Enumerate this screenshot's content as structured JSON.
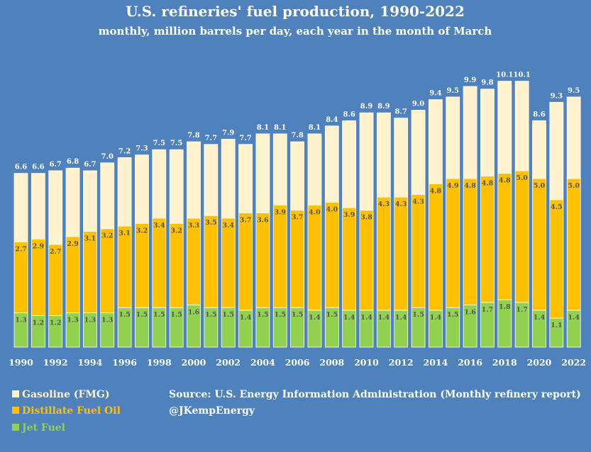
{
  "chart_data": {
    "type": "bar",
    "stacked": true,
    "title": "U.S. refineries' fuel production, 1990-2022",
    "subtitle": "monthly, million barrels per day, each year in the month of March",
    "x": [
      1990,
      1991,
      1992,
      1993,
      1994,
      1995,
      1996,
      1997,
      1998,
      1999,
      2000,
      2001,
      2002,
      2003,
      2004,
      2005,
      2006,
      2007,
      2008,
      2009,
      2010,
      2011,
      2012,
      2013,
      2014,
      2015,
      2016,
      2017,
      2018,
      2019,
      2020,
      2021,
      2022
    ],
    "x_tick_labels": [
      "1990",
      "1992",
      "1994",
      "1996",
      "1998",
      "2000",
      "2002",
      "2004",
      "2006",
      "2008",
      "2010",
      "2012",
      "2014",
      "2016",
      "2018",
      "2020",
      "2022"
    ],
    "series": [
      {
        "name": "Jet Fuel",
        "color": "#92d050",
        "values": [
          1.3,
          1.2,
          1.2,
          1.3,
          1.3,
          1.3,
          1.5,
          1.5,
          1.5,
          1.5,
          1.6,
          1.5,
          1.5,
          1.4,
          1.5,
          1.5,
          1.5,
          1.4,
          1.5,
          1.4,
          1.4,
          1.4,
          1.4,
          1.5,
          1.4,
          1.5,
          1.6,
          1.7,
          1.8,
          1.7,
          1.4,
          1.1,
          1.4
        ]
      },
      {
        "name": "Distillate Fuel Oil",
        "color": "#ffc000",
        "values": [
          2.7,
          2.9,
          2.7,
          2.9,
          3.1,
          3.2,
          3.1,
          3.2,
          3.4,
          3.2,
          3.3,
          3.5,
          3.4,
          3.7,
          3.6,
          3.9,
          3.7,
          4.0,
          4.0,
          3.9,
          3.8,
          4.3,
          4.3,
          4.3,
          4.8,
          4.9,
          4.8,
          4.8,
          4.8,
          5.0,
          5.0,
          4.5,
          5.0
        ]
      },
      {
        "name": "Gasoline (FMG)",
        "color": "#fff2cc",
        "values": [
          2.6,
          2.5,
          2.8,
          2.6,
          2.3,
          2.5,
          2.6,
          2.6,
          2.6,
          2.8,
          2.9,
          2.7,
          3.0,
          2.6,
          3.0,
          2.7,
          2.6,
          2.7,
          2.9,
          3.3,
          3.7,
          3.2,
          3.0,
          3.2,
          3.2,
          3.1,
          3.5,
          3.3,
          3.5,
          3.4,
          2.2,
          3.7,
          3.1
        ]
      }
    ],
    "totals": [
      6.6,
      6.6,
      6.7,
      6.8,
      6.7,
      7.0,
      7.2,
      7.3,
      7.5,
      7.5,
      7.8,
      7.7,
      7.9,
      7.7,
      8.1,
      8.1,
      7.8,
      8.1,
      8.4,
      8.6,
      8.9,
      8.9,
      8.7,
      9.0,
      9.4,
      9.5,
      9.9,
      9.8,
      10.1,
      10.1,
      8.6,
      9.3,
      9.5
    ],
    "ylim": [
      0,
      10.6
    ],
    "grid": false,
    "legend_position": "bottom-left"
  },
  "legend": {
    "items": [
      {
        "label": "Gasoline (FMG)",
        "color": "#fff2cc"
      },
      {
        "label": "Distillate Fuel Oil",
        "color": "#ffc000"
      },
      {
        "label": "Jet Fuel",
        "color": "#92d050"
      }
    ]
  },
  "source": {
    "line1": "Source: U.S. Energy Information Administration (Monthly refinery report)",
    "line2": "@JKempEnergy"
  },
  "colors": {
    "background": "#4f81bd",
    "bar_border": "#ffffff"
  }
}
